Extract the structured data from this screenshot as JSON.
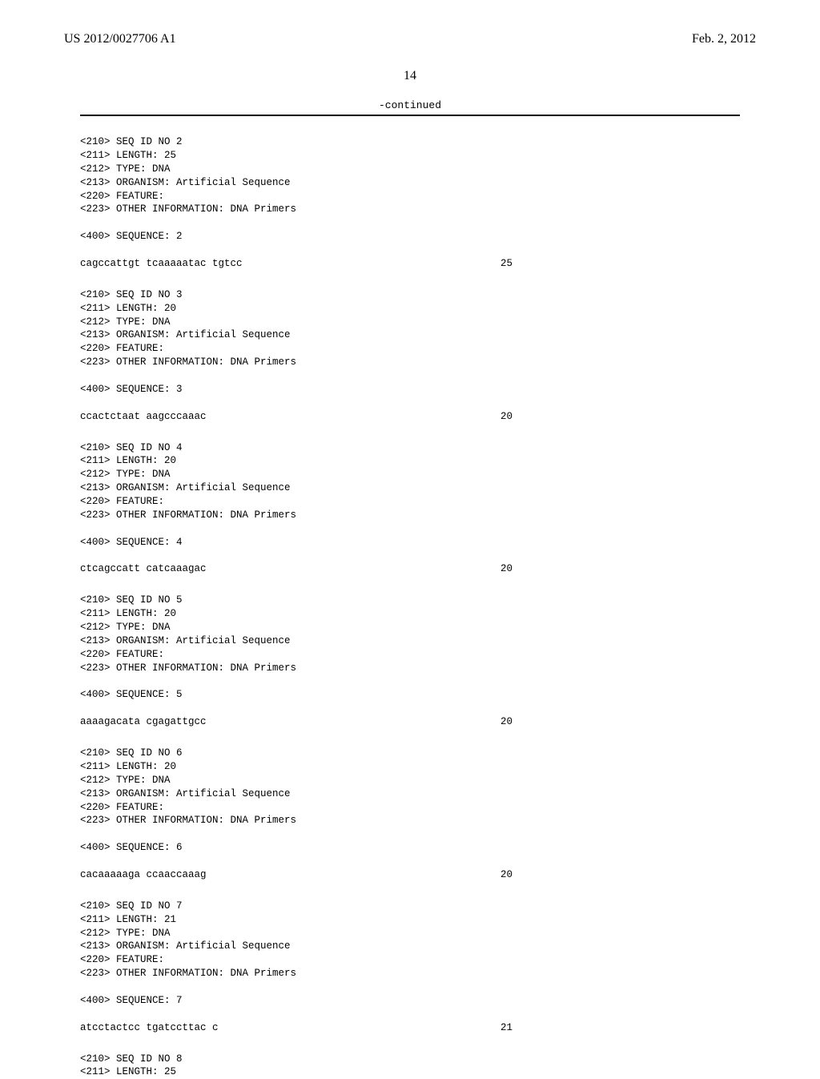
{
  "page": {
    "pub_number": "US 2012/0027706 A1",
    "pub_date": "Feb. 2, 2012",
    "page_number": "14",
    "continued_label": "-continued",
    "colors": {
      "text": "#000000",
      "background": "#ffffff"
    },
    "typography": {
      "header_font": "Times New Roman, serif",
      "header_fontsize_pt": 16,
      "mono_font": "Courier New, monospace",
      "mono_fontsize_pt": 9
    }
  },
  "sequences": [
    {
      "header": [
        "<210> SEQ ID NO 2",
        "<211> LENGTH: 25",
        "<212> TYPE: DNA",
        "<213> ORGANISM: Artificial Sequence",
        "<220> FEATURE:",
        "<223> OTHER INFORMATION: DNA Primers"
      ],
      "seq_label": "<400> SEQUENCE: 2",
      "seq_text": "cagccattgt tcaaaaatac tgtcc",
      "seq_count": "25"
    },
    {
      "header": [
        "<210> SEQ ID NO 3",
        "<211> LENGTH: 20",
        "<212> TYPE: DNA",
        "<213> ORGANISM: Artificial Sequence",
        "<220> FEATURE:",
        "<223> OTHER INFORMATION: DNA Primers"
      ],
      "seq_label": "<400> SEQUENCE: 3",
      "seq_text": "ccactctaat aagcccaaac",
      "seq_count": "20"
    },
    {
      "header": [
        "<210> SEQ ID NO 4",
        "<211> LENGTH: 20",
        "<212> TYPE: DNA",
        "<213> ORGANISM: Artificial Sequence",
        "<220> FEATURE:",
        "<223> OTHER INFORMATION: DNA Primers"
      ],
      "seq_label": "<400> SEQUENCE: 4",
      "seq_text": "ctcagccatt catcaaagac",
      "seq_count": "20"
    },
    {
      "header": [
        "<210> SEQ ID NO 5",
        "<211> LENGTH: 20",
        "<212> TYPE: DNA",
        "<213> ORGANISM: Artificial Sequence",
        "<220> FEATURE:",
        "<223> OTHER INFORMATION: DNA Primers"
      ],
      "seq_label": "<400> SEQUENCE: 5",
      "seq_text": "aaaagacata cgagattgcc",
      "seq_count": "20"
    },
    {
      "header": [
        "<210> SEQ ID NO 6",
        "<211> LENGTH: 20",
        "<212> TYPE: DNA",
        "<213> ORGANISM: Artificial Sequence",
        "<220> FEATURE:",
        "<223> OTHER INFORMATION: DNA Primers"
      ],
      "seq_label": "<400> SEQUENCE: 6",
      "seq_text": "cacaaaaaga ccaaccaaag",
      "seq_count": "20"
    },
    {
      "header": [
        "<210> SEQ ID NO 7",
        "<211> LENGTH: 21",
        "<212> TYPE: DNA",
        "<213> ORGANISM: Artificial Sequence",
        "<220> FEATURE:",
        "<223> OTHER INFORMATION: DNA Primers"
      ],
      "seq_label": "<400> SEQUENCE: 7",
      "seq_text": "atcctactcc tgatccttac c",
      "seq_count": "21"
    },
    {
      "header": [
        "<210> SEQ ID NO 8",
        "<211> LENGTH: 25"
      ],
      "seq_label": "",
      "seq_text": "",
      "seq_count": ""
    }
  ]
}
